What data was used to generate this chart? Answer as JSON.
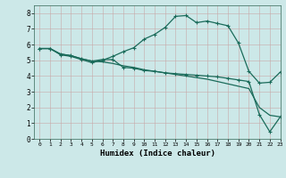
{
  "title": "",
  "xlabel": "Humidex (Indice chaleur)",
  "ylabel": "",
  "xlim": [
    -0.5,
    23
  ],
  "ylim": [
    0,
    8.5
  ],
  "xticks": [
    0,
    1,
    2,
    3,
    4,
    5,
    6,
    7,
    8,
    9,
    10,
    11,
    12,
    13,
    14,
    15,
    16,
    17,
    18,
    19,
    20,
    21,
    22,
    23
  ],
  "yticks": [
    0,
    1,
    2,
    3,
    4,
    5,
    6,
    7,
    8
  ],
  "bg_color": "#cce8e8",
  "line_color": "#1a6b5a",
  "grid_color": "#aacfcf",
  "line1_x": [
    0,
    1,
    2,
    3,
    4,
    5,
    6,
    7,
    8,
    9,
    10,
    11,
    12,
    13,
    14,
    15,
    16,
    17,
    18,
    19,
    20,
    21,
    22,
    23
  ],
  "line1_y": [
    5.75,
    5.75,
    5.35,
    5.25,
    5.05,
    4.85,
    5.0,
    5.25,
    5.55,
    5.8,
    6.35,
    6.65,
    7.1,
    7.8,
    7.85,
    7.4,
    7.5,
    7.35,
    7.2,
    6.1,
    4.3,
    3.55,
    3.6,
    4.25
  ],
  "line2_x": [
    0,
    1,
    2,
    3,
    4,
    5,
    6,
    7,
    8,
    9,
    10,
    11,
    12,
    13,
    14,
    15,
    16,
    17,
    18,
    19,
    20,
    21,
    22,
    23
  ],
  "line2_y": [
    5.75,
    5.75,
    5.4,
    5.3,
    5.1,
    4.95,
    5.05,
    5.05,
    4.55,
    4.5,
    4.35,
    4.3,
    4.2,
    4.15,
    4.1,
    4.05,
    4.0,
    3.95,
    3.85,
    3.75,
    3.65,
    1.55,
    0.45,
    1.4
  ],
  "line3_x": [
    0,
    1,
    2,
    3,
    4,
    5,
    6,
    7,
    8,
    9,
    10,
    11,
    12,
    13,
    14,
    15,
    16,
    17,
    18,
    19,
    20,
    21,
    22,
    23
  ],
  "line3_y": [
    5.75,
    5.75,
    5.4,
    5.3,
    5.1,
    4.95,
    4.9,
    4.8,
    4.65,
    4.55,
    4.4,
    4.3,
    4.2,
    4.1,
    4.0,
    3.9,
    3.8,
    3.65,
    3.5,
    3.35,
    3.2,
    2.0,
    1.5,
    1.4
  ]
}
